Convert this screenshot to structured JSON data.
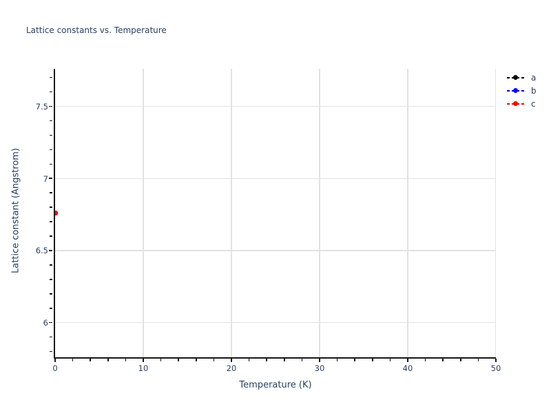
{
  "chart_data": {
    "type": "scatter",
    "title": "Lattice constants vs. Temperature",
    "xlabel": "Temperature (K)",
    "ylabel": "Lattice constant (Angstrom)",
    "xlim": [
      0,
      50
    ],
    "ylim": [
      5.76,
      7.76
    ],
    "xticks": [
      0,
      10,
      20,
      30,
      40,
      50
    ],
    "yticks": [
      6,
      6.5,
      7,
      7.5
    ],
    "x_minor_step": 2,
    "y_minor_step": 0.1,
    "y_minor_range": [
      5.8,
      7.7
    ],
    "grid": true,
    "legend_position": "outside-top-right",
    "line_style": "dashed-with-circle-marker",
    "series": [
      {
        "name": "a",
        "color": "#000000",
        "points": [
          [
            0,
            6.76
          ]
        ]
      },
      {
        "name": "b",
        "color": "#0000ff",
        "points": [
          [
            0,
            6.76
          ]
        ]
      },
      {
        "name": "c",
        "color": "#ff0000",
        "points": [
          [
            0,
            6.76
          ]
        ]
      }
    ]
  },
  "colors": {
    "text": "#2a3f5f",
    "grid": "#e2e2e2",
    "axis": "#171717",
    "background": "#ffffff"
  }
}
